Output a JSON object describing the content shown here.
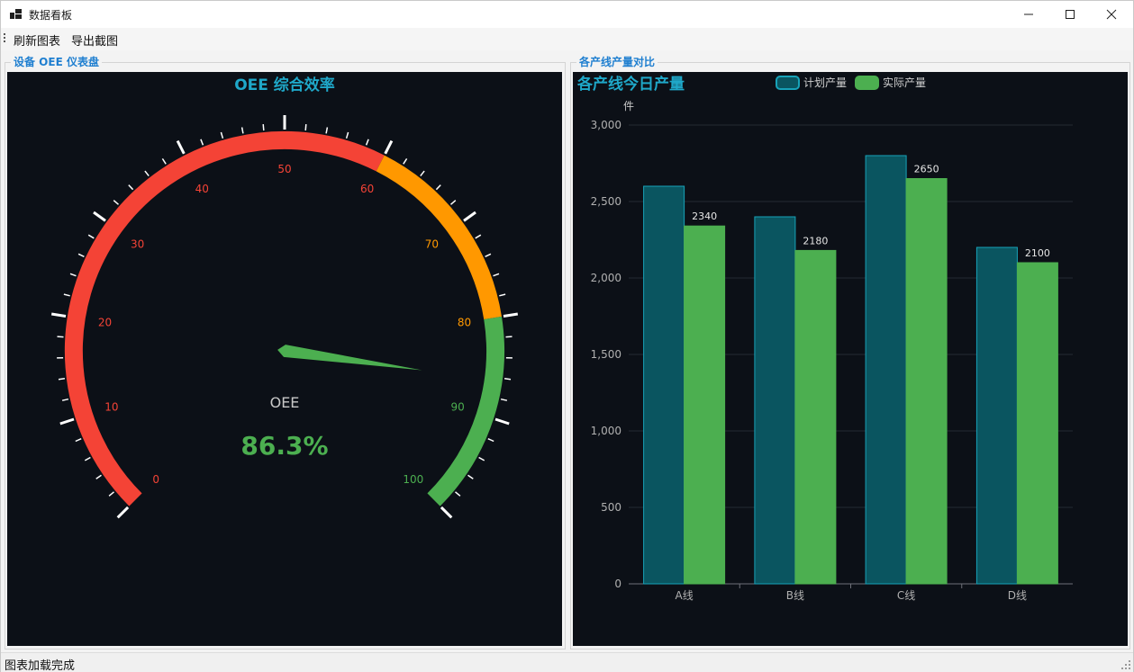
{
  "window": {
    "title": "数据看板",
    "app_icon": "dashboard-app-icon",
    "controls": [
      "minimize-icon",
      "maximize-icon",
      "close-icon"
    ]
  },
  "menu": {
    "items": [
      "刷新图表",
      "导出截图"
    ]
  },
  "left_panel": {
    "legend": "设备 OEE 仪表盘",
    "gauge": {
      "title": "OEE 综合效率",
      "label": "OEE",
      "value_text": "86.3%",
      "value": 86.3,
      "min": 0,
      "max": 100,
      "tick_labels": [
        "0",
        "10",
        "20",
        "30",
        "40",
        "50",
        "60",
        "70",
        "80",
        "90",
        "100"
      ],
      "bands": [
        {
          "from": 0,
          "to": 60,
          "color": "#f44336"
        },
        {
          "from": 60,
          "to": 80,
          "color": "#ff9800"
        },
        {
          "from": 80,
          "to": 100,
          "color": "#4caf50"
        }
      ],
      "pointer_color": "#4caf50",
      "title_color": "#1fa8c9"
    }
  },
  "right_panel": {
    "legend": "各产线产量对比",
    "chart_data": {
      "type": "bar",
      "title": "各产线今日产量",
      "ylabel": "件",
      "categories": [
        "A线",
        "B线",
        "C线",
        "D线"
      ],
      "ylim": [
        0,
        3000
      ],
      "yticks": [
        "0",
        "500",
        "1,000",
        "1,500",
        "2,000",
        "2,500",
        "3,000"
      ],
      "series": [
        {
          "name": "计划产量",
          "values": [
            2600,
            2400,
            2800,
            2200
          ],
          "color": "#0a5560",
          "border": "#17a2b8",
          "labels": []
        },
        {
          "name": "实际产量",
          "values": [
            2340,
            2180,
            2650,
            2100
          ],
          "color": "#4caf50",
          "border": "#4caf50",
          "labels": [
            "2340",
            "2180",
            "2650",
            "2100"
          ]
        }
      ],
      "legend_position": "top-center",
      "grid": true
    }
  },
  "status": {
    "text": "图表加载完成"
  }
}
